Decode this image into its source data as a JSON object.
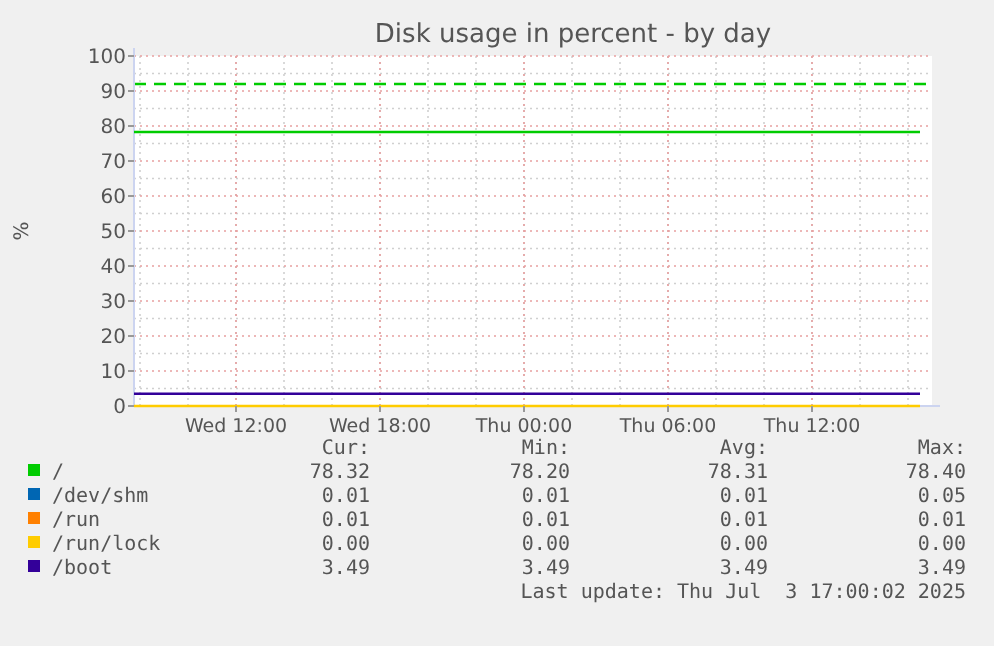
{
  "chart_data": {
    "type": "line",
    "title": "Disk usage in percent - by day",
    "ylabel": "%",
    "xlim": [
      "2025-07-02T07:45",
      "2025-07-03T17:00"
    ],
    "xticks": [
      {
        "value": "2025-07-02T12:00",
        "label": "Wed 12:00"
      },
      {
        "value": "2025-07-02T18:00",
        "label": "Wed 18:00"
      },
      {
        "value": "2025-07-03T00:00",
        "label": "Thu 00:00"
      },
      {
        "value": "2025-07-03T06:00",
        "label": "Thu 06:00"
      },
      {
        "value": "2025-07-03T12:00",
        "label": "Thu 12:00"
      }
    ],
    "ylim": [
      0,
      100
    ],
    "yticks": [
      0,
      10,
      20,
      30,
      40,
      50,
      60,
      70,
      80,
      90,
      100
    ],
    "grid": true,
    "legend": "bottom",
    "line_style": "solid",
    "marker": "none",
    "series": [
      {
        "name": "/",
        "color": "#00cc00",
        "x": [
          "2025-07-02T07:45",
          "2025-07-02T18:00",
          "2025-07-03T06:00",
          "2025-07-03T16:30"
        ],
        "values": [
          78.3,
          78.3,
          78.3,
          78.3
        ]
      },
      {
        "name": "/dev/shm",
        "color": "#0066b3"
      },
      {
        "name": "/run",
        "color": "#ff8000"
      },
      {
        "name": "/run/lock",
        "color": "#ffcc00",
        "x": [
          "2025-07-02T07:45",
          "2025-07-02T18:00",
          "2025-07-03T06:00",
          "2025-07-03T16:30"
        ],
        "values": [
          0,
          0,
          0,
          0
        ]
      },
      {
        "name": "/boot",
        "color": "#330099",
        "x": [
          "2025-07-02T07:45",
          "2025-07-02T18:00",
          "2025-07-03T06:00",
          "2025-07-03T16:30"
        ],
        "values": [
          3.5,
          3.5,
          3.5,
          3.5
        ]
      }
    ],
    "ref_lines": [
      {
        "axis": "y",
        "value": 92,
        "color": "#00cc00",
        "line_style": "dashed"
      }
    ],
    "annotations": [
      "Cur:",
      "Min:",
      "Avg:",
      "Max:",
      "78.32",
      "78.20",
      "78.31",
      "78.40",
      "0.01",
      "0.01",
      "0.01",
      "0.05",
      "0.01",
      "0.01",
      "0.01",
      "0.01",
      "0.00",
      "0.00",
      "0.00",
      "0.00",
      "3.49",
      "3.49",
      "3.49",
      "3.49",
      "Last update: Thu Jul  3 17:00:02 2025"
    ]
  }
}
